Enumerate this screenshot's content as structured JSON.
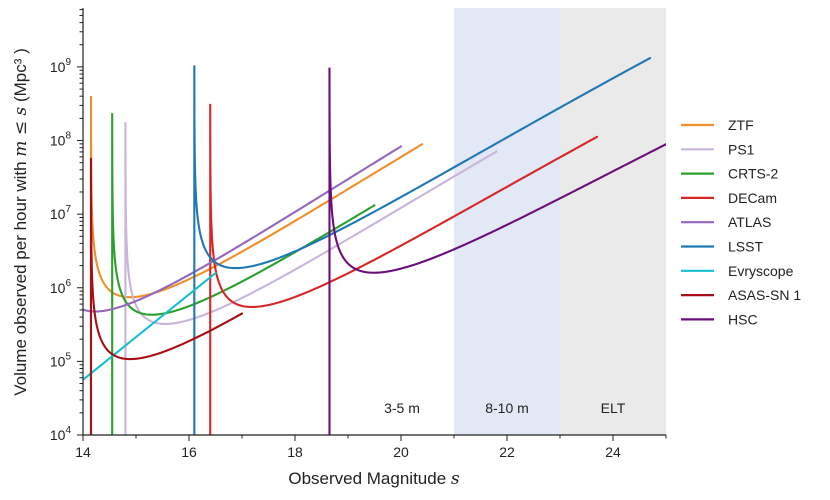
{
  "chart_data": {
    "type": "line",
    "xlabel_text": "Observed Magnitude",
    "xlabel_var": "s",
    "ylabel_text": "Volume observed per hour with",
    "ylabel_math": "m ≤ s",
    "ylabel_unit": "(Mpc³ )",
    "xlim": [
      14,
      25
    ],
    "ylim_log10": [
      4,
      9.8
    ],
    "x_ticks": [
      14,
      16,
      18,
      20,
      22,
      24
    ],
    "y_ticks": [
      {
        "exp": 4,
        "label_base": "10",
        "label_exp": "4"
      },
      {
        "exp": 5,
        "label_base": "10",
        "label_exp": "5"
      },
      {
        "exp": 6,
        "label_base": "10",
        "label_exp": "6"
      },
      {
        "exp": 7,
        "label_base": "10",
        "label_exp": "7"
      },
      {
        "exp": 8,
        "label_base": "10",
        "label_exp": "8"
      },
      {
        "exp": 9,
        "label_base": "10",
        "label_exp": "9"
      }
    ],
    "regions": [
      {
        "label": "3-5 m",
        "x0": null,
        "x1": 21,
        "fill": "none"
      },
      {
        "label": "8-10 m",
        "x0": 21,
        "x1": 23,
        "fill": "#e2e8f6"
      },
      {
        "label": "ELT",
        "x0": 23,
        "x1": 25,
        "fill": "#eaeaea"
      }
    ],
    "series": [
      {
        "name": "ZTF",
        "color": "#f28e2b",
        "m0": 14.15,
        "x_end": 20.4,
        "y_end_log10": 7.95
      },
      {
        "name": "PS1",
        "color": "#c9b5d8",
        "m0": 14.8,
        "x_end": 21.8,
        "y_end_log10": 7.85
      },
      {
        "name": "CRTS-2",
        "color": "#2ca02c",
        "m0": 14.55,
        "x_end": 19.5,
        "y_end_log10": 7.12
      },
      {
        "name": "DECam",
        "color": "#d62728",
        "m0": 16.4,
        "x_end": 23.7,
        "y_end_log10": 8.05
      },
      {
        "name": "ATLAS",
        "color": "#9467bd",
        "m0": 13.5,
        "x_end": 20.0,
        "y_end_log10": 7.92
      },
      {
        "name": "LSST",
        "color": "#1f77b4",
        "m0": 16.1,
        "x_end": 24.7,
        "y_end_log10": 9.12
      },
      {
        "name": "Evryscope",
        "color": "#17becf",
        "m0": null,
        "x_start": 14.0,
        "y_start_log10": 4.75,
        "x_end": 16.5,
        "y_end_log10": 6.2
      },
      {
        "name": "ASAS-SN 1",
        "color": "#a50f15",
        "m0": 14.15,
        "x_end": 17.0,
        "y_end_log10": 5.65
      },
      {
        "name": "HSC",
        "color": "#6a0f7a",
        "m0": 18.65,
        "x_end": 25.0,
        "y_end_log10": 7.95
      }
    ]
  }
}
